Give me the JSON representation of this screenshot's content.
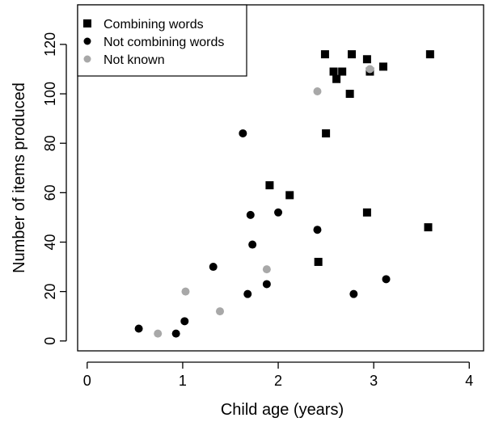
{
  "chart_data": {
    "type": "scatter",
    "xlabel": "Child age (years)",
    "ylabel": "Number of items produced",
    "xlim": [
      -0.1,
      4.15
    ],
    "ylim": [
      -4,
      136
    ],
    "xticks": [
      0,
      1,
      2,
      3,
      4
    ],
    "yticks": [
      0,
      20,
      40,
      60,
      80,
      100,
      120
    ],
    "grid": false,
    "legend_position": "top-left",
    "series": [
      {
        "name": "Combining words",
        "marker": "square",
        "color": "#000000",
        "points": [
          {
            "x": 2.49,
            "y": 116
          },
          {
            "x": 2.77,
            "y": 116
          },
          {
            "x": 2.93,
            "y": 114
          },
          {
            "x": 3.59,
            "y": 116
          },
          {
            "x": 3.1,
            "y": 111
          },
          {
            "x": 2.58,
            "y": 109
          },
          {
            "x": 2.67,
            "y": 109
          },
          {
            "x": 2.96,
            "y": 109
          },
          {
            "x": 2.61,
            "y": 106
          },
          {
            "x": 2.75,
            "y": 100
          },
          {
            "x": 2.5,
            "y": 84
          },
          {
            "x": 1.91,
            "y": 63
          },
          {
            "x": 2.12,
            "y": 59
          },
          {
            "x": 2.93,
            "y": 52
          },
          {
            "x": 3.57,
            "y": 46
          },
          {
            "x": 2.42,
            "y": 32
          }
        ]
      },
      {
        "name": "Not combining words",
        "marker": "circle",
        "color": "#000000",
        "points": [
          {
            "x": 1.63,
            "y": 84
          },
          {
            "x": 2.0,
            "y": 52
          },
          {
            "x": 1.71,
            "y": 51
          },
          {
            "x": 2.41,
            "y": 45
          },
          {
            "x": 1.73,
            "y": 39
          },
          {
            "x": 1.32,
            "y": 30
          },
          {
            "x": 3.13,
            "y": 25
          },
          {
            "x": 1.88,
            "y": 23
          },
          {
            "x": 1.68,
            "y": 19
          },
          {
            "x": 2.79,
            "y": 19
          },
          {
            "x": 1.02,
            "y": 8
          },
          {
            "x": 0.54,
            "y": 5
          },
          {
            "x": 0.93,
            "y": 3
          }
        ]
      },
      {
        "name": "Not known",
        "marker": "circle",
        "color": "#a8a8a8",
        "points": [
          {
            "x": 2.41,
            "y": 101
          },
          {
            "x": 2.96,
            "y": 110
          },
          {
            "x": 1.88,
            "y": 29
          },
          {
            "x": 1.03,
            "y": 20
          },
          {
            "x": 1.39,
            "y": 12
          },
          {
            "x": 0.74,
            "y": 3
          }
        ]
      }
    ]
  }
}
